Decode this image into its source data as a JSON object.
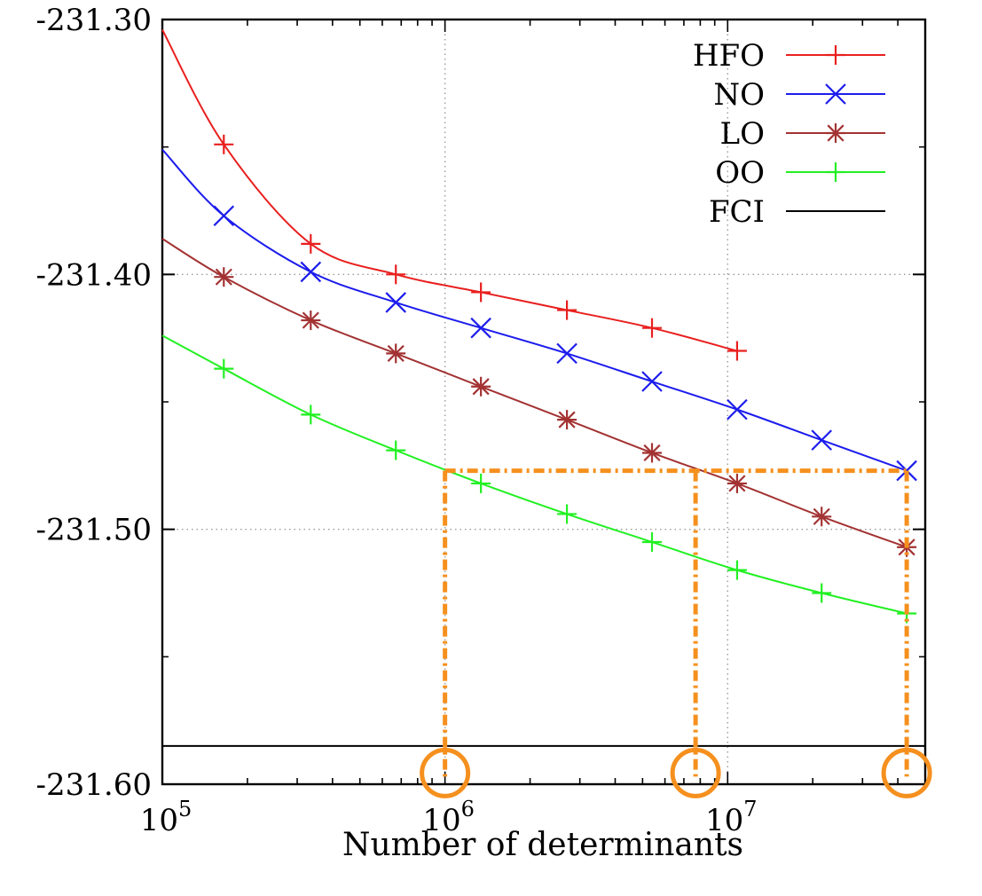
{
  "chart_data": {
    "type": "line",
    "xlabel": "Number of determinants",
    "ylabel": "",
    "x_scale": "log",
    "xlim": [
      100000,
      50000000
    ],
    "ylim": [
      -231.6,
      -231.3
    ],
    "grid": true,
    "legend_position": "top-right",
    "x_ticks": [
      {
        "value": 100000,
        "base": "10",
        "exp": "5"
      },
      {
        "value": 1000000,
        "base": "10",
        "exp": "6"
      },
      {
        "value": 10000000,
        "base": "10",
        "exp": "7"
      }
    ],
    "y_ticks": [
      {
        "value": -231.3,
        "label": "-231.30"
      },
      {
        "value": -231.4,
        "label": "-231.40"
      },
      {
        "value": -231.5,
        "label": "-231.50"
      },
      {
        "value": -231.6,
        "label": "-231.60"
      }
    ],
    "series": [
      {
        "name": "HFO",
        "color": "#e8201f",
        "marker": "plus",
        "x": [
          100000,
          165000,
          335000,
          670000,
          1340000,
          2700000,
          5400000,
          10800000
        ],
        "y": [
          -231.304,
          -231.349,
          -231.388,
          -231.4,
          -231.407,
          -231.414,
          -231.421,
          -231.43
        ],
        "marked": [
          false,
          true,
          true,
          true,
          true,
          true,
          true,
          true
        ]
      },
      {
        "name": "NO",
        "color": "#1c1ced",
        "marker": "x",
        "x": [
          100000,
          165000,
          335000,
          670000,
          1340000,
          2700000,
          5400000,
          10800000,
          21500000,
          43000000
        ],
        "y": [
          -231.351,
          -231.377,
          -231.399,
          -231.411,
          -231.421,
          -231.431,
          -231.442,
          -231.453,
          -231.465,
          -231.477
        ],
        "marked": [
          false,
          true,
          true,
          true,
          true,
          true,
          true,
          true,
          true,
          true
        ]
      },
      {
        "name": "LO",
        "color": "#a33232",
        "marker": "asterisk",
        "x": [
          100000,
          165000,
          335000,
          670000,
          1340000,
          2700000,
          5400000,
          10800000,
          21500000,
          43000000
        ],
        "y": [
          -231.386,
          -231.401,
          -231.418,
          -231.431,
          -231.444,
          -231.457,
          -231.47,
          -231.482,
          -231.495,
          -231.507
        ],
        "marked": [
          false,
          true,
          true,
          true,
          true,
          true,
          true,
          true,
          true,
          true
        ]
      },
      {
        "name": "OO",
        "color": "#22f022",
        "marker": "plus",
        "x": [
          100000,
          165000,
          335000,
          670000,
          1340000,
          2700000,
          5400000,
          10800000,
          21500000,
          43000000
        ],
        "y": [
          -231.424,
          -231.437,
          -231.455,
          -231.469,
          -231.482,
          -231.494,
          -231.505,
          -231.516,
          -231.525,
          -231.533
        ],
        "marked": [
          false,
          true,
          true,
          true,
          true,
          true,
          true,
          true,
          true,
          true
        ]
      },
      {
        "name": "FCI",
        "color": "#000000",
        "marker": "none",
        "x": [
          100000,
          50000000
        ],
        "y": [
          -231.585,
          -231.585
        ],
        "marked": [
          false,
          false
        ]
      }
    ],
    "annotation": {
      "color": "#f5901e",
      "y": -231.477,
      "x_values": [
        1000000,
        7700000,
        43000000
      ],
      "circle_at_y": -231.597
    }
  }
}
